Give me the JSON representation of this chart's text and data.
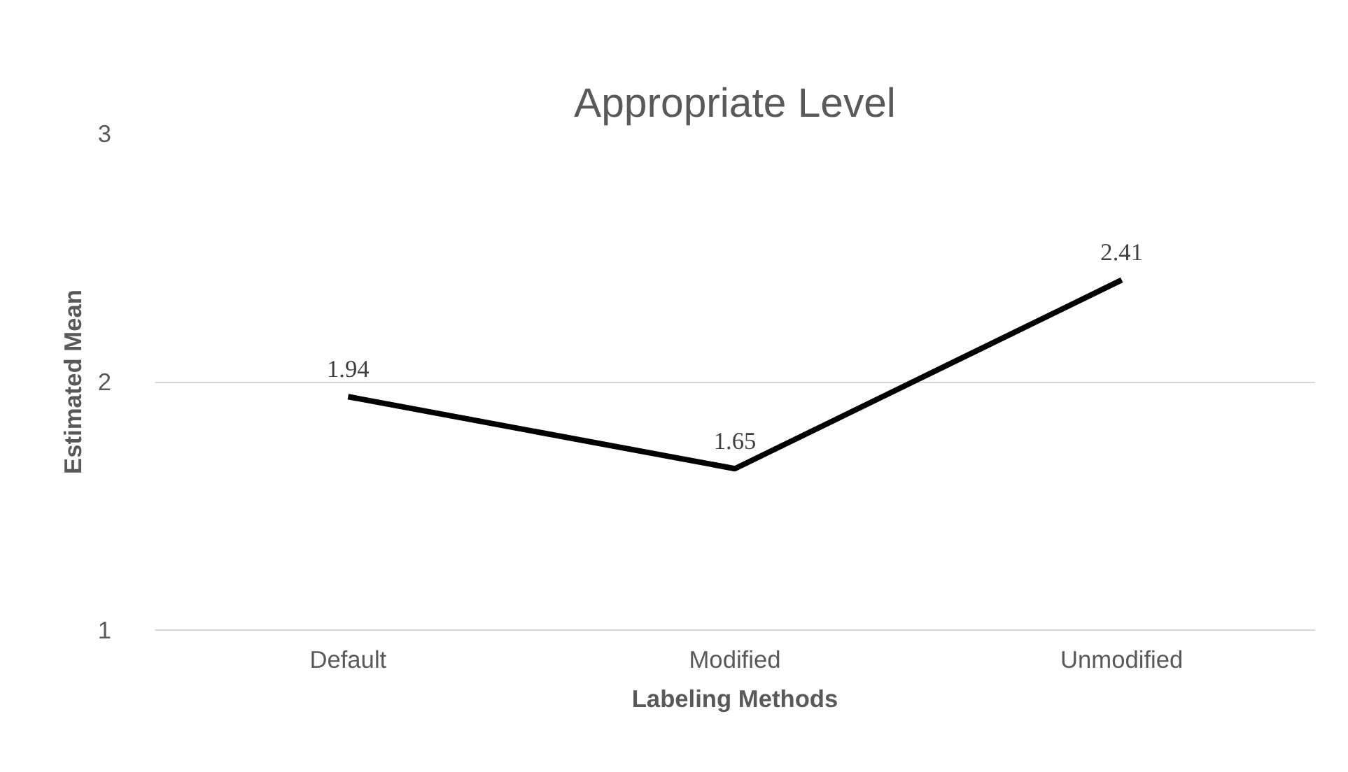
{
  "chart_data": {
    "type": "line",
    "title": "Appropriate Level",
    "xlabel": "Labeling Methods",
    "ylabel": "Estimated Mean",
    "categories": [
      "Default",
      "Modified",
      "Unmodified"
    ],
    "series": [
      {
        "color": "#000000",
        "values": [
          1.94,
          1.65,
          2.41
        ]
      }
    ],
    "ylim": [
      1,
      3
    ],
    "yticks": [
      1,
      2,
      3
    ],
    "grid": "y",
    "data_labels": true,
    "marker": "none",
    "line_style": "solid"
  }
}
